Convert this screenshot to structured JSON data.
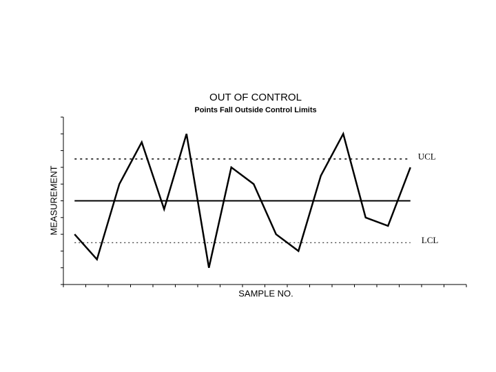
{
  "chart_data": {
    "type": "line",
    "title": "OUT OF CONTROL",
    "subtitle": "Points Fall Outside Control Limits",
    "x_label": "SAMPLE NO.",
    "y_label": "MEASUREMENT",
    "x": [
      0.5,
      1.5,
      2.5,
      3.5,
      4.5,
      5.5,
      6.5,
      7.5,
      8.5,
      9.5,
      10.5,
      11.5,
      12.5,
      13.5,
      14.5,
      15.5
    ],
    "values": [
      3.0,
      1.5,
      6.0,
      8.5,
      4.5,
      9.0,
      1.0,
      7.0,
      6.0,
      3.0,
      2.0,
      6.5,
      9.0,
      4.0,
      3.5,
      7.0
    ],
    "color": "#000000",
    "center_line": 5.0,
    "limits": [
      {
        "label": "UCL",
        "value": 7.5
      },
      {
        "label": "LCL",
        "value": 2.5
      }
    ],
    "xlim": [
      0,
      18
    ],
    "xticks": [
      0,
      1,
      2,
      3,
      4,
      5,
      6,
      7,
      8,
      9,
      10,
      11,
      12,
      13,
      14,
      15,
      16,
      17,
      18
    ],
    "ylim": [
      0,
      10
    ],
    "yticks": [
      0,
      1,
      2,
      3,
      4,
      5,
      6,
      7,
      8,
      9,
      10
    ]
  }
}
